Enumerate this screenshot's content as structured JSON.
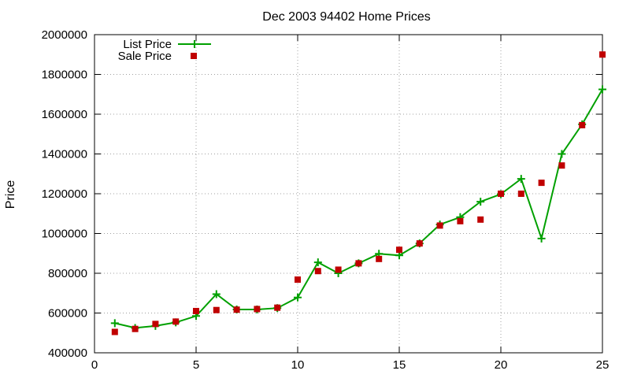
{
  "chart_data": {
    "type": "line",
    "title": "Dec 2003 94402 Home Prices",
    "xlabel": "",
    "ylabel": "Price",
    "xlim": [
      0,
      25
    ],
    "ylim": [
      400000,
      2000000
    ],
    "xticks": [
      0,
      5,
      10,
      15,
      20,
      25
    ],
    "yticks": [
      400000,
      600000,
      800000,
      1000000,
      1200000,
      1400000,
      1600000,
      1800000,
      2000000
    ],
    "grid": true,
    "legend_position": "top-left",
    "series": [
      {
        "name": "List Price",
        "style": "lines+crosses",
        "color": "#00a000",
        "x": [
          1,
          2,
          3,
          4,
          5,
          6,
          7,
          8,
          9,
          10,
          11,
          12,
          13,
          14,
          15,
          16,
          17,
          18,
          19,
          20,
          21,
          22,
          23,
          24,
          25
        ],
        "y": [
          549000,
          525000,
          535000,
          553000,
          585000,
          695000,
          618000,
          618000,
          625000,
          678000,
          855000,
          800000,
          850000,
          898000,
          890000,
          950000,
          1045000,
          1082000,
          1160000,
          1198000,
          1275000,
          975000,
          1400000,
          1549000,
          1725000
        ]
      },
      {
        "name": "Sale Price",
        "style": "points",
        "color": "#c00000",
        "x": [
          1,
          2,
          3,
          4,
          5,
          6,
          7,
          8,
          9,
          10,
          11,
          12,
          13,
          14,
          15,
          16,
          17,
          18,
          19,
          20,
          21,
          22,
          23,
          24,
          25
        ],
        "y": [
          505000,
          520000,
          545000,
          557000,
          610000,
          615000,
          617000,
          620000,
          627000,
          768000,
          811000,
          818000,
          850000,
          872000,
          918000,
          950000,
          1040000,
          1062000,
          1070000,
          1200000,
          1200000,
          1255000,
          1342000,
          1545000,
          1900000
        ]
      }
    ]
  }
}
